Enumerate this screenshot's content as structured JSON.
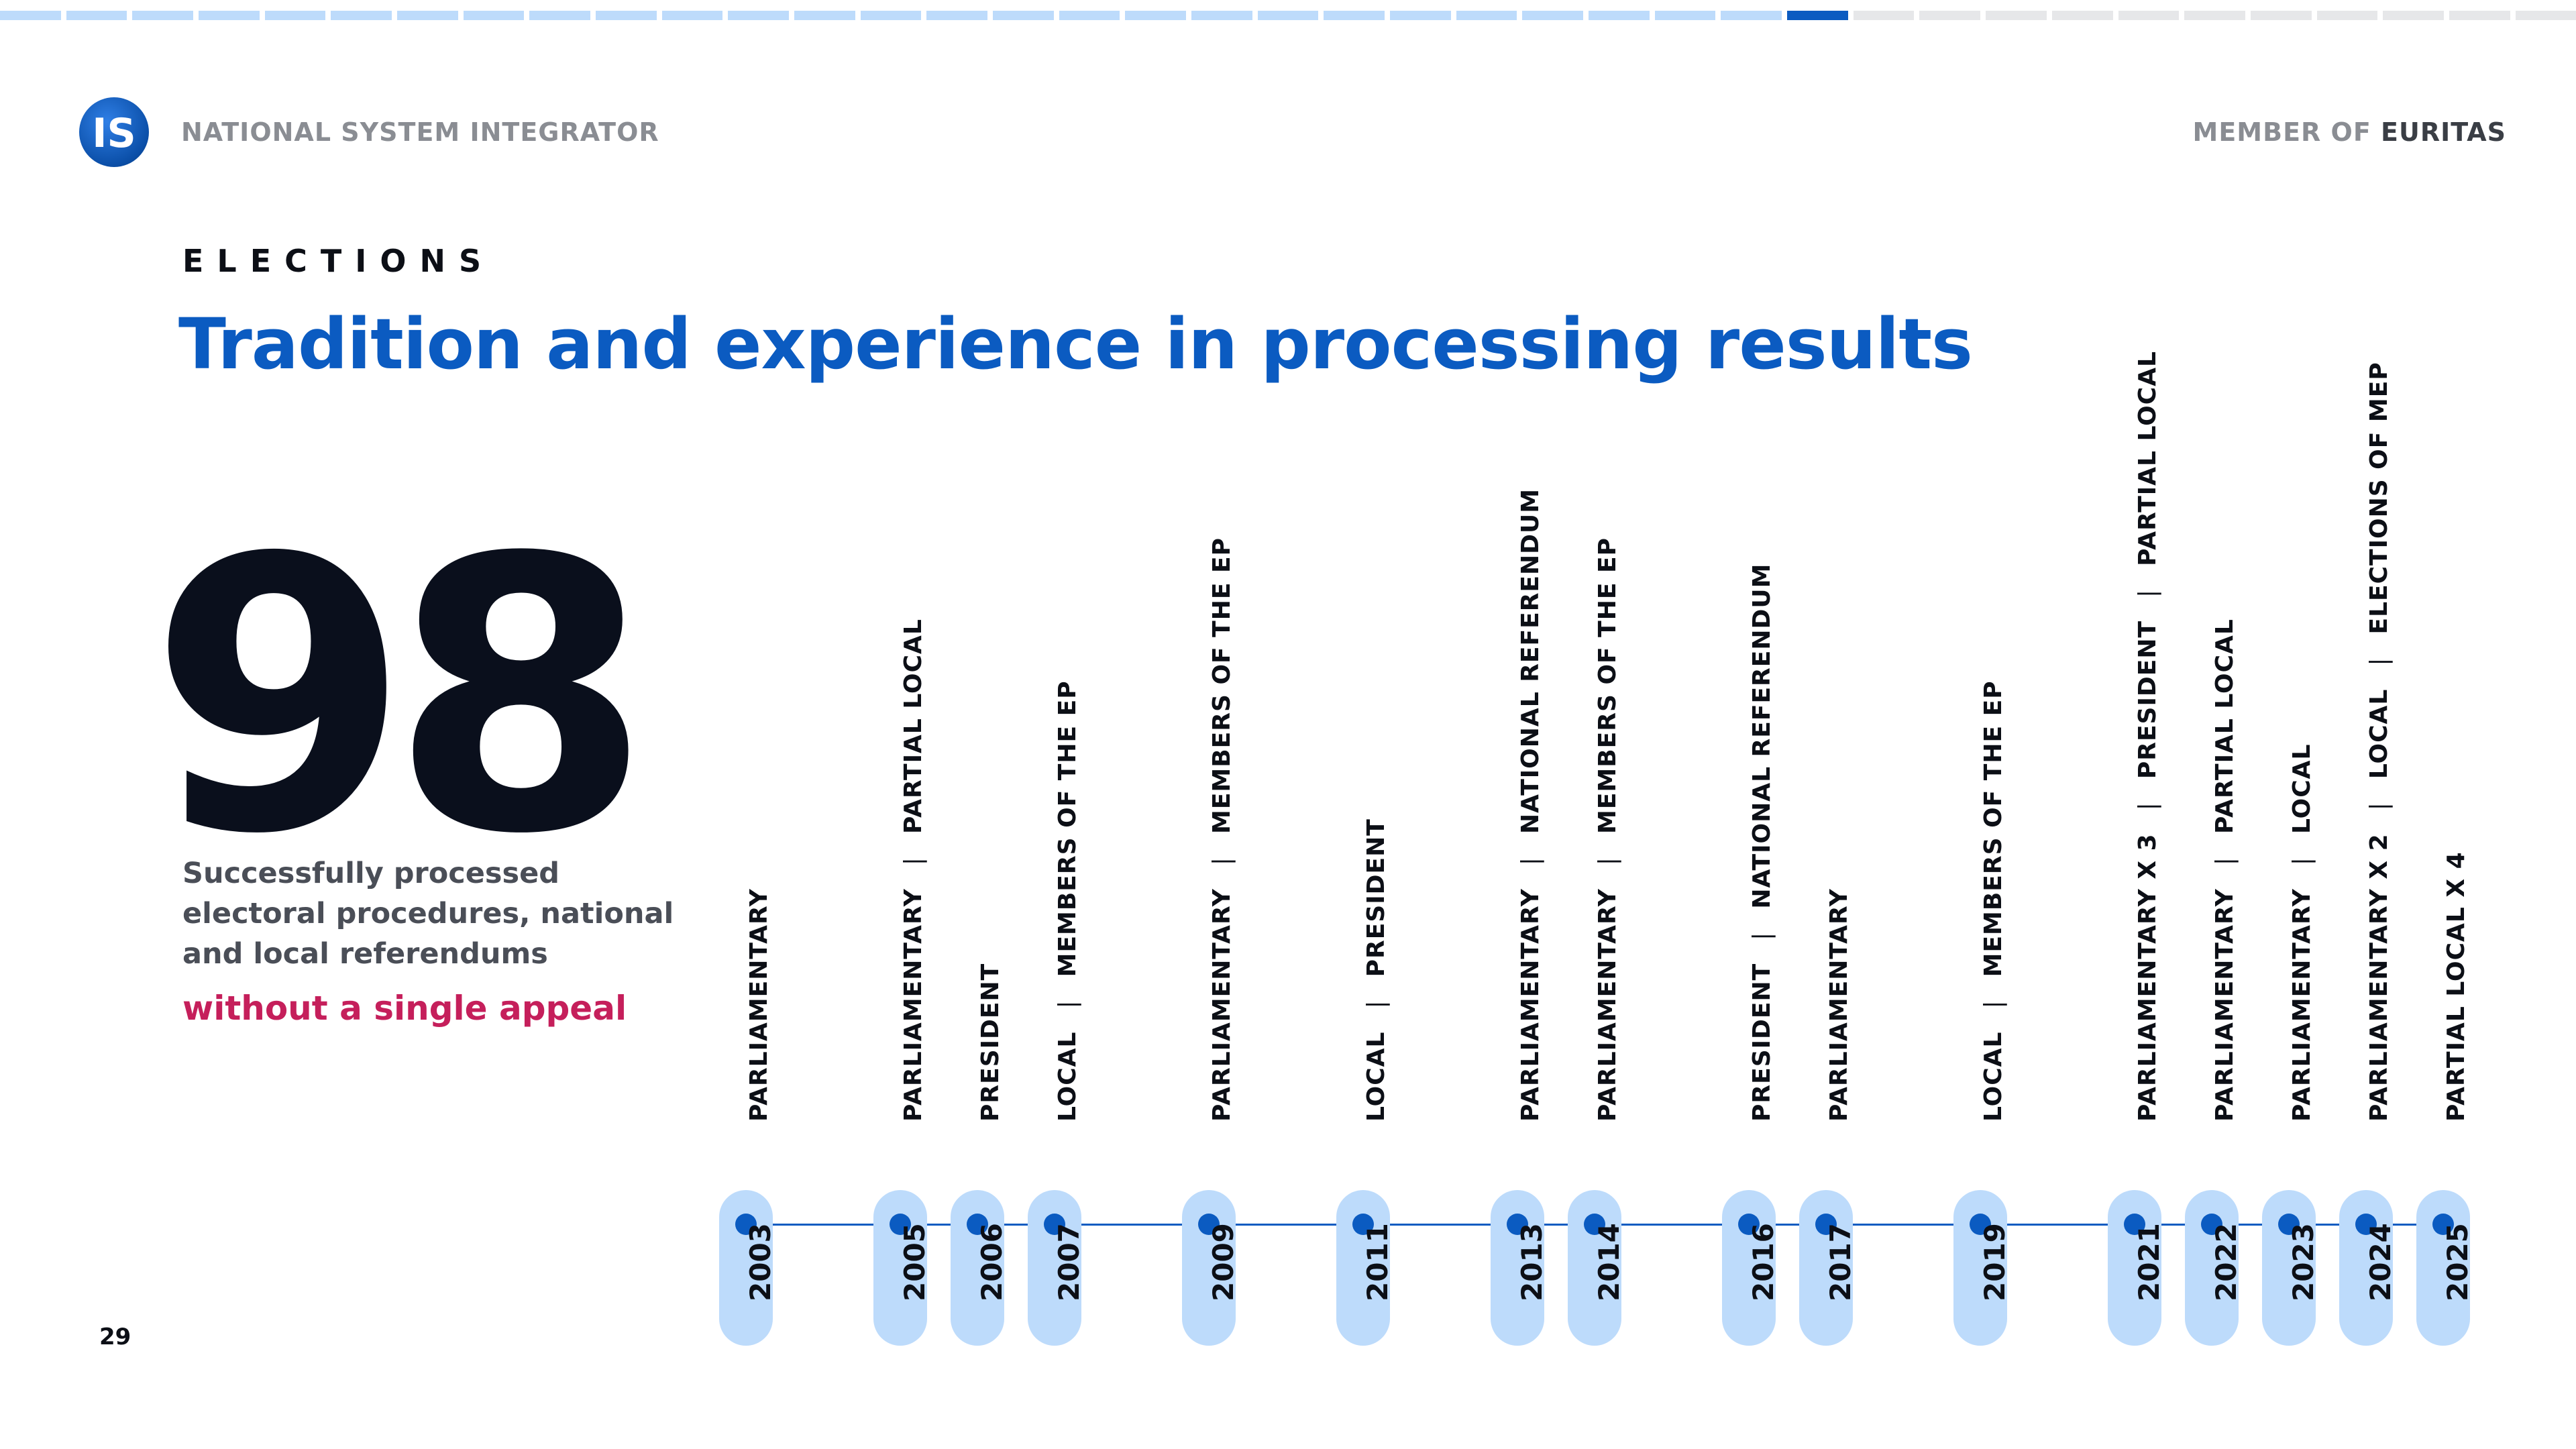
{
  "header": {
    "org_name": "NATIONAL SYSTEM INTEGRATOR",
    "member_prefix": "MEMBER OF",
    "member_name": "EURITAS",
    "logo_text": "IS",
    "progress": {
      "total_segments": 39,
      "completed_segments": 27,
      "current_segment": 28
    }
  },
  "section": {
    "kicker": "ELECTIONS",
    "title": "Tradition and experience in processing results"
  },
  "stat": {
    "number": "98",
    "description": "Successfully processed electoral procedures, national and local referendums",
    "highlight": "without a single appeal"
  },
  "page_number": "29",
  "colors": {
    "accent_blue": "#0b5bc1",
    "pill_blue": "#bddbfb",
    "progress_done": "#bddbfb",
    "progress_current": "#0b5bc1",
    "progress_todo": "#e6e7e9",
    "highlight_red": "#c51f5b"
  },
  "timeline": [
    {
      "year": "2003",
      "events": [
        "PARLIAMENTARY"
      ]
    },
    {
      "year": "2005",
      "events": [
        "PARLIAMENTARY",
        "PARTIAL LOCAL"
      ]
    },
    {
      "year": "2006",
      "events": [
        "PRESIDENT"
      ]
    },
    {
      "year": "2007",
      "events": [
        "LOCAL",
        "MEMBERS OF THE EP"
      ]
    },
    {
      "year": "2009",
      "events": [
        "PARLIAMENTARY",
        "MEMBERS OF THE EP"
      ]
    },
    {
      "year": "2011",
      "events": [
        "LOCAL",
        "PRESIDENT"
      ]
    },
    {
      "year": "2013",
      "events": [
        "PARLIAMENTARY",
        "NATIONAL REFERENDUM"
      ]
    },
    {
      "year": "2014",
      "events": [
        "PARLIAMENTARY",
        "MEMBERS OF THE EP"
      ]
    },
    {
      "year": "2016",
      "events": [
        "PRESIDENT",
        "NATIONAL REFERENDUM"
      ]
    },
    {
      "year": "2017",
      "events": [
        "PARLIAMENTARY"
      ]
    },
    {
      "year": "2019",
      "events": [
        "LOCAL",
        "MEMBERS OF THE EP"
      ]
    },
    {
      "year": "2021",
      "events": [
        "PARLIAMENTARY X 3",
        "PRESIDENT",
        "PARTIAL LOCAL"
      ]
    },
    {
      "year": "2022",
      "events": [
        "PARLIAMENTARY",
        "PARTIAL LOCAL"
      ]
    },
    {
      "year": "2023",
      "events": [
        "PARLIAMENTARY",
        "LOCAL"
      ]
    },
    {
      "year": "2024",
      "events": [
        "PARLIAMENTARY X 2",
        "LOCAL",
        "ELECTIONS OF MEP"
      ]
    },
    {
      "year": "2025",
      "events": [
        "PARTIAL LOCAL X 4"
      ]
    }
  ]
}
